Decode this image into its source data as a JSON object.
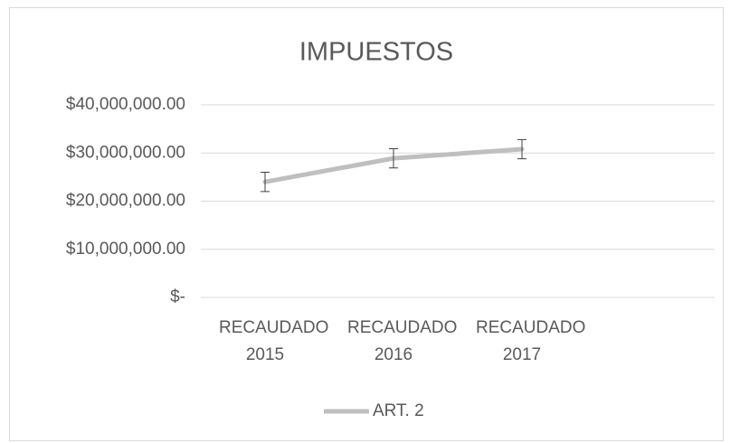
{
  "chart_data": {
    "type": "line",
    "title": "IMPUESTOS",
    "categories": [
      "RECAUDADO 2015",
      "RECAUDADO 2016",
      "RECAUDADO 2017",
      null
    ],
    "series": [
      {
        "name": "ART. 2",
        "color": "#bfbfbf",
        "values": [
          24000000,
          28900000,
          30800000,
          null
        ],
        "errors": [
          2000000,
          2000000,
          2000000,
          null
        ]
      }
    ],
    "ylim": [
      0,
      40000000
    ],
    "yticks": [
      {
        "value": 0,
        "label": "$-"
      },
      {
        "value": 10000000,
        "label": "$10,000,000.00"
      },
      {
        "value": 20000000,
        "label": "$20,000,000.00"
      },
      {
        "value": 30000000,
        "label": "$30,000,000.00"
      },
      {
        "value": 40000000,
        "label": "$40,000,000.00"
      }
    ],
    "grid": true,
    "legend": "bottom"
  }
}
